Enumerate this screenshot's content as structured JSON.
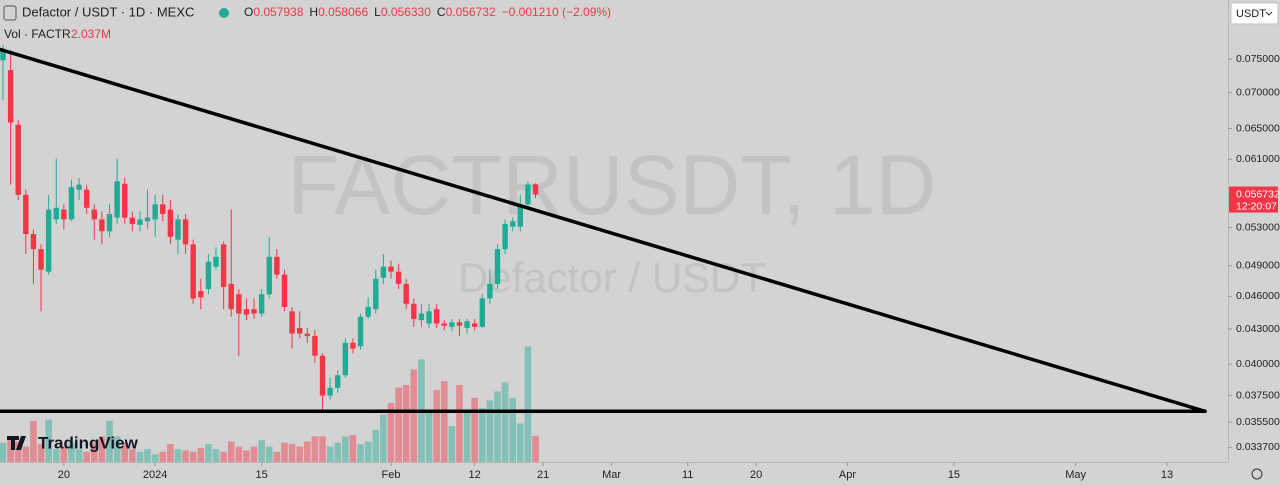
{
  "chart_data": {
    "type": "candlestick",
    "header": {
      "symbol": "Defactor / USDT · 1D · MEXC",
      "ohlc": [
        {
          "key": "O",
          "value": "0.057938"
        },
        {
          "key": "H",
          "value": "0.058066"
        },
        {
          "key": "L",
          "value": "0.056330"
        },
        {
          "key": "C",
          "value": "0.056732"
        }
      ],
      "change": "−0.001210 (−2.09%)",
      "volume_label": "Vol · FACTR",
      "volume_value": "2.037M"
    },
    "watermark_title": "FACTRUSDT, 1D",
    "watermark_subtitle": "Defactor / USDT",
    "currency": "USDT",
    "countdown": "12:20:07",
    "logo": "TradingView",
    "last_price": 0.056732,
    "up_color": "#22ab94",
    "down_color": "#f23645",
    "log_scale": true,
    "xlim": [
      "2023-12-12",
      "2024-05-18"
    ],
    "ylim": [
      0.0327,
      0.0847
    ],
    "volume_lim": [
      0,
      36
    ],
    "yticks": [
      {
        "value": 0.075,
        "label": "0.075000"
      },
      {
        "value": 0.07,
        "label": "0.070000"
      },
      {
        "value": 0.065,
        "label": "0.065000"
      },
      {
        "value": 0.061,
        "label": "0.061000"
      },
      {
        "value": 0.053,
        "label": "0.053000"
      },
      {
        "value": 0.049,
        "label": "0.049000"
      },
      {
        "value": 0.046,
        "label": "0.046000"
      },
      {
        "value": 0.043,
        "label": "0.043000"
      },
      {
        "value": 0.04,
        "label": "0.040000"
      },
      {
        "value": 0.0375,
        "label": "0.037500"
      },
      {
        "value": 0.0355,
        "label": "0.035500"
      },
      {
        "value": 0.0337,
        "label": "0.033700"
      }
    ],
    "xticks": [
      {
        "value": "2023-12-20",
        "label": "20"
      },
      {
        "value": "2024-01-01",
        "label": "2024"
      },
      {
        "value": "2024-01-15",
        "label": "15"
      },
      {
        "value": "2024-02-01",
        "label": "Feb"
      },
      {
        "value": "2024-02-12",
        "label": "12"
      },
      {
        "value": "2024-02-21",
        "label": "21"
      },
      {
        "value": "2024-03-01",
        "label": "Mar"
      },
      {
        "value": "2024-03-11",
        "label": "11"
      },
      {
        "value": "2024-03-20",
        "label": "20"
      },
      {
        "value": "2024-04-01",
        "label": "Apr"
      },
      {
        "value": "2024-04-15",
        "label": "15"
      },
      {
        "value": "2024-05-01",
        "label": "May"
      },
      {
        "value": "2024-05-13",
        "label": "13"
      }
    ],
    "x": [
      "2023-12-12",
      "2023-12-13",
      "2023-12-14",
      "2023-12-15",
      "2023-12-16",
      "2023-12-17",
      "2023-12-18",
      "2023-12-19",
      "2023-12-20",
      "2023-12-21",
      "2023-12-22",
      "2023-12-23",
      "2023-12-24",
      "2023-12-25",
      "2023-12-26",
      "2023-12-27",
      "2023-12-28",
      "2023-12-29",
      "2023-12-30",
      "2023-12-31",
      "2024-01-01",
      "2024-01-02",
      "2024-01-03",
      "2024-01-04",
      "2024-01-05",
      "2024-01-06",
      "2024-01-07",
      "2024-01-08",
      "2024-01-09",
      "2024-01-10",
      "2024-01-11",
      "2024-01-12",
      "2024-01-13",
      "2024-01-14",
      "2024-01-15",
      "2024-01-16",
      "2024-01-17",
      "2024-01-18",
      "2024-01-19",
      "2024-01-20",
      "2024-01-21",
      "2024-01-22",
      "2024-01-23",
      "2024-01-24",
      "2024-01-25",
      "2024-01-26",
      "2024-01-27",
      "2024-01-28",
      "2024-01-29",
      "2024-01-30",
      "2024-01-31",
      "2024-02-01",
      "2024-02-02",
      "2024-02-03",
      "2024-02-04",
      "2024-02-05",
      "2024-02-06",
      "2024-02-07",
      "2024-02-08",
      "2024-02-09",
      "2024-02-10",
      "2024-02-11",
      "2024-02-12",
      "2024-02-13",
      "2024-02-14",
      "2024-02-15",
      "2024-02-16",
      "2024-02-17",
      "2024-02-18",
      "2024-02-19",
      "2024-02-20"
    ],
    "open": [
      0.0748,
      0.0733,
      0.0655,
      0.0567,
      0.0523,
      0.0507,
      0.0484,
      0.0539,
      0.055,
      0.0539,
      0.0573,
      0.0573,
      0.055,
      0.0539,
      0.0526,
      0.0541,
      0.058,
      0.0541,
      0.0533,
      0.0537,
      0.0539,
      0.0556,
      0.055,
      0.0517,
      0.0539,
      0.0512,
      0.0465,
      0.0467,
      0.0489,
      0.0512,
      0.0472,
      0.0462,
      0.0448,
      0.0448,
      0.0444,
      0.0462,
      0.0499,
      0.0481,
      0.0446,
      0.0431,
      0.0426,
      0.0424,
      0.0407,
      0.0375,
      0.0381,
      0.0391,
      0.0418,
      0.0415,
      0.0441,
      0.0448,
      0.0478,
      0.0489,
      0.0484,
      0.0472,
      0.0453,
      0.0438,
      0.0435,
      0.0448,
      0.0435,
      0.0432,
      0.0436,
      0.0431,
      0.0435,
      0.0432,
      0.0458,
      0.0472,
      0.0507,
      0.0531,
      0.0531,
      0.0556,
      0.057938
    ],
    "high": [
      0.0772,
      0.0764,
      0.0661,
      0.0573,
      0.0528,
      0.0512,
      0.0567,
      0.0611,
      0.0556,
      0.0585,
      0.0587,
      0.0579,
      0.0556,
      0.0548,
      0.0556,
      0.0611,
      0.0587,
      0.0548,
      0.0548,
      0.0573,
      0.0567,
      0.0567,
      0.0561,
      0.0545,
      0.0545,
      0.0517,
      0.0477,
      0.0502,
      0.0509,
      0.0515,
      0.055,
      0.0467,
      0.0458,
      0.0458,
      0.0467,
      0.052,
      0.0507,
      0.0486,
      0.045,
      0.0446,
      0.0431,
      0.0429,
      0.0409,
      0.0389,
      0.0395,
      0.0422,
      0.0422,
      0.0444,
      0.0459,
      0.0486,
      0.0502,
      0.0495,
      0.0492,
      0.0477,
      0.0458,
      0.0453,
      0.0453,
      0.0453,
      0.0438,
      0.0439,
      0.0439,
      0.0439,
      0.0439,
      0.0462,
      0.0486,
      0.0512,
      0.0539,
      0.0541,
      0.0567,
      0.0583,
      0.058066
    ],
    "low": [
      0.0689,
      0.0579,
      0.0561,
      0.0502,
      0.0472,
      0.0446,
      0.0481,
      0.0534,
      0.0528,
      0.0537,
      0.0561,
      0.0545,
      0.0517,
      0.0512,
      0.052,
      0.0534,
      0.0534,
      0.0526,
      0.0526,
      0.0528,
      0.052,
      0.0537,
      0.0512,
      0.0502,
      0.0502,
      0.0453,
      0.0448,
      0.0462,
      0.0486,
      0.0448,
      0.0441,
      0.0407,
      0.0438,
      0.0439,
      0.0441,
      0.0458,
      0.0477,
      0.0446,
      0.0413,
      0.0422,
      0.0418,
      0.0401,
      0.0364,
      0.0372,
      0.0377,
      0.0389,
      0.0409,
      0.0412,
      0.0439,
      0.0444,
      0.0472,
      0.0477,
      0.0467,
      0.0448,
      0.0432,
      0.0432,
      0.0431,
      0.0431,
      0.0429,
      0.0428,
      0.0424,
      0.0426,
      0.0429,
      0.0431,
      0.0453,
      0.0467,
      0.0502,
      0.0526,
      0.0526,
      0.055,
      0.05633
    ],
    "close": [
      0.0766,
      0.0658,
      0.0567,
      0.0523,
      0.0507,
      0.0486,
      0.055,
      0.0552,
      0.0539,
      0.0576,
      0.0579,
      0.0552,
      0.0539,
      0.0526,
      0.0545,
      0.0583,
      0.0541,
      0.0534,
      0.0539,
      0.0541,
      0.0556,
      0.0545,
      0.052,
      0.0539,
      0.0512,
      0.0458,
      0.0459,
      0.0494,
      0.0499,
      0.0469,
      0.0448,
      0.0444,
      0.0443,
      0.0444,
      0.0462,
      0.0499,
      0.0481,
      0.045,
      0.0426,
      0.0426,
      0.0424,
      0.0407,
      0.0375,
      0.0381,
      0.0391,
      0.0418,
      0.0413,
      0.0441,
      0.045,
      0.0477,
      0.0489,
      0.0484,
      0.0472,
      0.0453,
      0.0439,
      0.0444,
      0.0446,
      0.0435,
      0.0433,
      0.0436,
      0.0433,
      0.0437,
      0.0432,
      0.0458,
      0.0472,
      0.0507,
      0.0534,
      0.0537,
      0.0556,
      0.0579,
      0.056732
    ],
    "volume": [
      1.5,
      1.8,
      1.6,
      1.2,
      3.2,
      1.4,
      3.3,
      1.0,
      1.2,
      1.5,
      1.0,
      0.8,
      1.5,
      2.0,
      3.2,
      2.0,
      1.5,
      1.0,
      0.8,
      1.0,
      0.6,
      0.8,
      1.4,
      1.0,
      0.9,
      0.8,
      1.1,
      1.4,
      1.0,
      0.8,
      1.6,
      1.2,
      0.9,
      1.2,
      1.7,
      1.2,
      0.8,
      1.5,
      1.4,
      1.2,
      1.6,
      2.0,
      2.0,
      1.2,
      1.5,
      2.0,
      2.1,
      1.4,
      1.6,
      2.5,
      3.7,
      4.6,
      5.8,
      6.0,
      7.2,
      8.0,
      4.0,
      5.6,
      6.3,
      2.8,
      6.0,
      4.0,
      5.0,
      4.2,
      4.8,
      5.5,
      6.2,
      5.0,
      3.0,
      9.0,
      2.037
    ],
    "trendlines": [
      {
        "x": [
          "2023-12-12",
          "2024-05-18"
        ],
        "y": [
          0.0765,
          0.0363
        ]
      },
      {
        "x": [
          "2023-12-12",
          "2024-05-18"
        ],
        "y": [
          0.0363,
          0.0363
        ]
      }
    ]
  }
}
